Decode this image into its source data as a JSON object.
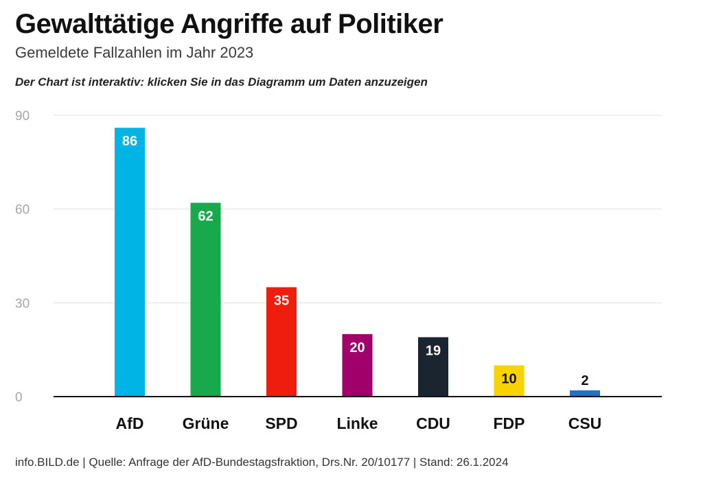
{
  "header": {
    "title": "Gewalttätige Angriffe auf Politiker",
    "subtitle": "Gemeldete Fallzahlen im Jahr 2023",
    "note": "Der Chart ist interaktiv: klicken Sie in das Diagramm um Daten anzuzeigen"
  },
  "footer": {
    "source": "info.BILD.de | Quelle: Anfrage der AfD-Bundestagsfraktion, Drs.Nr. 20/10177 | Stand: 26.1.2024"
  },
  "chart_data": {
    "type": "bar",
    "title": "Gewalttätige Angriffe auf Politiker",
    "subtitle": "Gemeldete Fallzahlen im Jahr 2023",
    "categories": [
      "AfD",
      "Grüne",
      "SPD",
      "Linke",
      "CDU",
      "FDP",
      "CSU"
    ],
    "values": [
      86,
      62,
      35,
      20,
      19,
      10,
      2
    ],
    "colors": [
      "#00b4e6",
      "#17a94c",
      "#ef1d0e",
      "#a1006b",
      "#1a2530",
      "#f9d300",
      "#1e73c8"
    ],
    "value_label_colors": [
      "#ffffff",
      "#ffffff",
      "#ffffff",
      "#ffffff",
      "#ffffff",
      "#111111",
      "#111111"
    ],
    "ylim": [
      0,
      90
    ],
    "yticks": [
      0,
      30,
      60,
      90
    ],
    "xlabel": "",
    "ylabel": "",
    "grid": true,
    "legend": "none"
  }
}
